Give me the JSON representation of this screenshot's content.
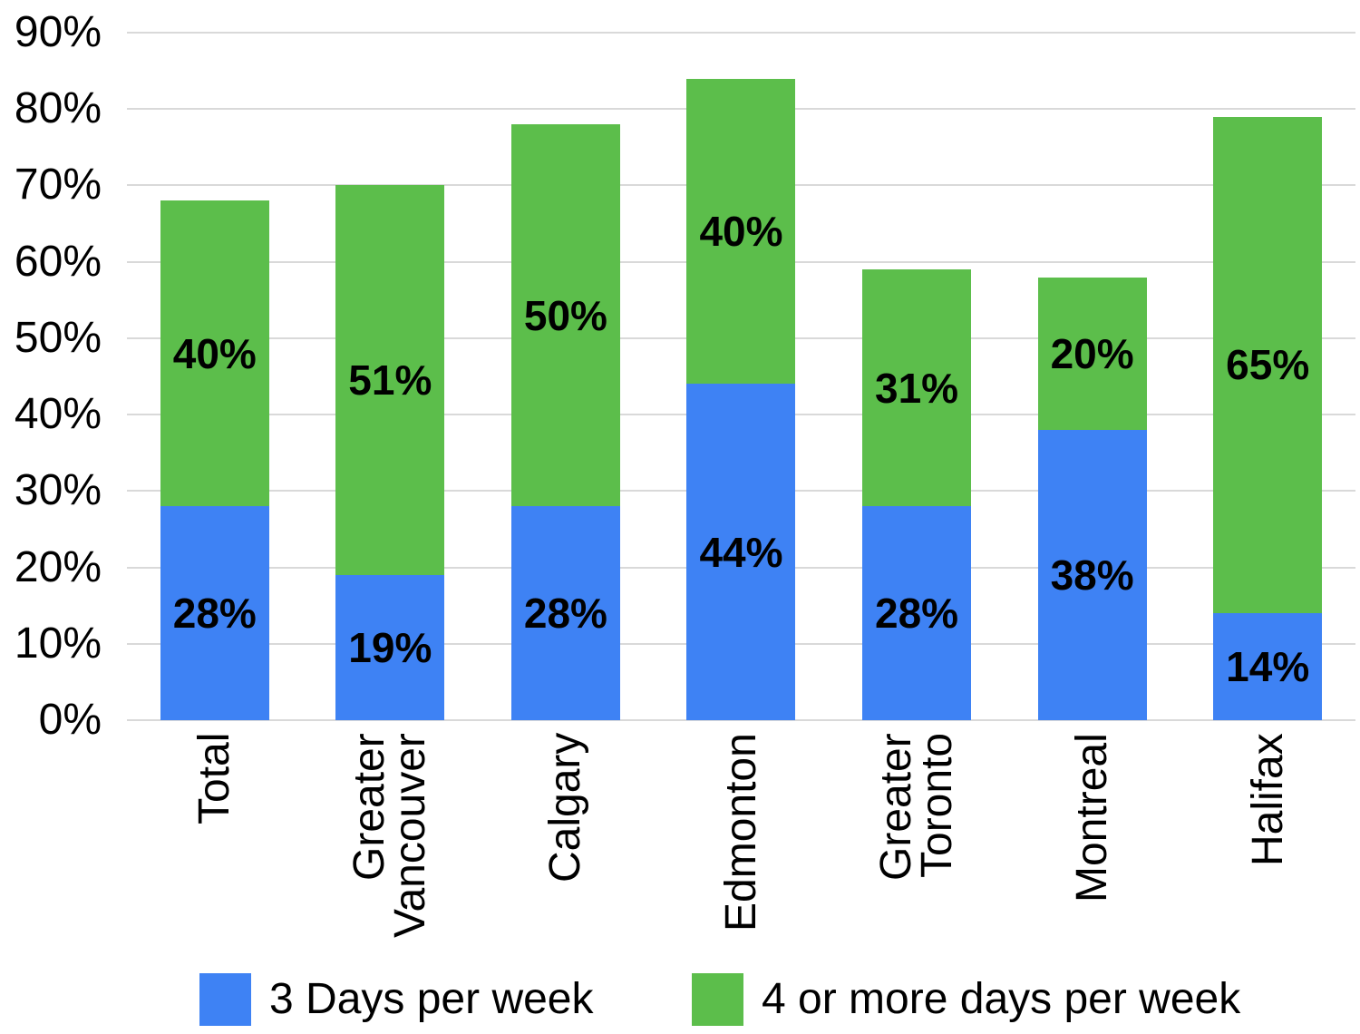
{
  "chart_data": {
    "type": "bar",
    "stacked": true,
    "categories": [
      [
        "Total"
      ],
      [
        "Greater",
        "Vancouver"
      ],
      [
        "Calgary"
      ],
      [
        "Edmonton"
      ],
      [
        "Greater",
        "Toronto"
      ],
      [
        "Montreal"
      ],
      [
        "Halifax"
      ]
    ],
    "series": [
      {
        "name": "3 Days per week",
        "color": "#3E82F4",
        "values": [
          28,
          19,
          28,
          44,
          28,
          38,
          14
        ],
        "labels": [
          "28%",
          "19%",
          "28%",
          "44%",
          "28%",
          "38%",
          "14%"
        ]
      },
      {
        "name": "4 or more days per week",
        "color": "#5CBE4B",
        "values": [
          40,
          51,
          50,
          40,
          31,
          20,
          65
        ],
        "labels": [
          "40%",
          "51%",
          "50%",
          "40%",
          "31%",
          "20%",
          "65%"
        ]
      }
    ],
    "y_axis": {
      "min": 0,
      "max": 90,
      "step": 10,
      "tick_labels": [
        "0%",
        "10%",
        "20%",
        "30%",
        "40%",
        "50%",
        "60%",
        "70%",
        "80%",
        "90%"
      ]
    },
    "legend_position": "bottom",
    "grid": true,
    "gridline_color": "#D9D9D9",
    "background": "#FFFFFF",
    "label_color": "#000000"
  }
}
